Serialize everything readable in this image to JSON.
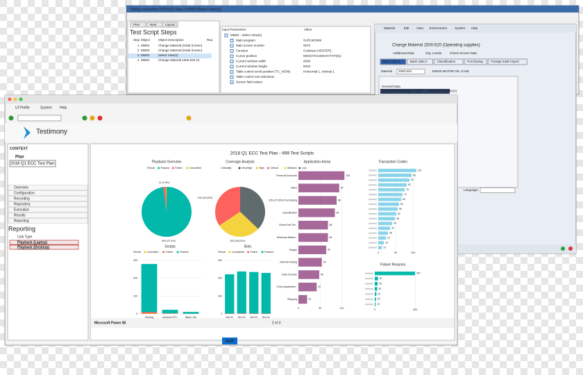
{
  "back_dialog": {
    "title": "Dialog transaction (320/312) Step 3 (MM02/Select View(s))",
    "buttons": [
      "Prev",
      "Next",
      "Layout..."
    ],
    "steps_title": "Test Script Steps",
    "columns": [
      "Step",
      "Object",
      "Object Description",
      "Rea"
    ],
    "steps": [
      [
        "1",
        "MM02",
        "Change Material (Initial Screen)"
      ],
      [
        "2",
        "MM02",
        "Change Material (Initial Screen)"
      ],
      [
        "3",
        "MM02",
        "Select View(s)"
      ],
      [
        "4",
        "MM02",
        "Change Material 1500-520 (O"
      ]
    ],
    "params_header": [
      "Input Parameters",
      "Value"
    ],
    "params": [
      {
        "label": "MM02 - Select View(s)"
      },
      {
        "label": "Main program",
        "value": "SAPLMGMM"
      },
      {
        "label": "Main screen number",
        "value": "0070"
      },
      {
        "label": "Function",
        "value": "Continue (<ENTER)"
      },
      {
        "label": "Cursor position",
        "value": "MSICHTAUSW-DYTXT(01)"
      },
      {
        "label": "Current window width",
        "value": "0046"
      },
      {
        "label": "Current window height",
        "value": "0018"
      },
      {
        "label": "Table control scroll position (TC_VIEW)",
        "value": "Horizontal 1, Vertical 1"
      },
      {
        "label": "Table control row selections"
      },
      {
        "label": "Screen field values"
      }
    ]
  },
  "sap_window": {
    "menu": [
      "Material",
      "Edit",
      "Goto",
      "Environment",
      "System",
      "Help"
    ],
    "title": "Change Material 1500-520 (Operating supplies)",
    "toolbar": [
      "Additional Data",
      "Org. Levels",
      "Check Screen Data"
    ],
    "tabs": [
      "Basic data 1",
      "Basic data 2",
      "Classification",
      "Purchasing",
      "Foreign trade import"
    ],
    "material_label": "Material",
    "material": "1500-520",
    "description": "10W30 MOTOR OIL CASE",
    "section": "General Data",
    "fields": [
      "Base Unit of Measure",
      "CSE",
      "Material Group",
      "00101"
    ],
    "language": "Language:"
  },
  "front_window": {
    "menu": [
      "UI Profile",
      "System",
      "Help"
    ],
    "brand": "Testimony",
    "context": "CONTEXT",
    "plan_label": "Plan",
    "plan": "2018 Q1 ECC Test Plan",
    "nav": [
      "Overview",
      "Configuration",
      "Recording",
      "Repository",
      "Execution",
      "Results",
      "Reporting"
    ],
    "reporting": "Reporting",
    "link_type": "Link Type",
    "links": [
      "Playback (Laptop)",
      "Playback (Desktop)"
    ],
    "sap": "SAP"
  },
  "dashboard": {
    "title": "2018 Q1 ECC Test Plan - 699 Test Scripts",
    "footer": "Microsoft Power BI",
    "pager": "2 of 3",
    "charts": [
      {
        "type": "pie",
        "title": "Playback Overview",
        "legend_title": "Result",
        "categories": [
          "Passed",
          "Failed",
          "Cancelled"
        ],
        "colors": [
          "#01b8aa",
          "#fd625e",
          "#f2c80f"
        ],
        "values": [
          654,
          11,
          3
        ],
        "value_labels": [
          "654 (97.9%)",
          "11 (1.6%)",
          null
        ]
      },
      {
        "type": "pie",
        "title": "Coverage Analysis",
        "legend_title": "Criticality",
        "categories": [
          "VeryHigh",
          "High",
          "Critical",
          "Medium",
          "Low"
        ],
        "colors": [
          "#374649",
          "#f2c80f",
          "#fd625e",
          "#f5d33f",
          "#5f6b6d"
        ],
        "values": [
          0,
          0,
          240,
          200,
          259
        ],
        "value_labels": [
          null,
          null,
          "240 (34.33%)",
          "200 (28.61%)",
          "259 (37.05%)"
        ]
      },
      {
        "type": "hbar",
        "title": "Application Areas",
        "color": "#a66999",
        "categories": [
          "Financial Accounts",
          "Sales",
          "Purchasing",
          "Classification",
          "Client/Cntrl Tex..",
          "Workload Balanc..",
          "Margin",
          "Internal Posting",
          "Data Formats",
          "Cross Application..",
          "Shipping"
        ],
        "values": [
          106,
          94,
          88,
          84,
          68,
          68,
          64,
          54,
          48,
          42,
          20
        ],
        "xlim": [
          0,
          120
        ],
        "xticks": [
          0,
          50,
          100
        ]
      },
      {
        "type": "hbar",
        "title": "Transaction Codes",
        "color": "#8ad4eb",
        "categories": [
          null,
          null,
          null,
          null,
          null,
          null,
          null,
          null,
          null,
          null,
          null,
          null,
          null,
          null,
          null,
          null,
          null
        ],
        "values": [
          110,
          96,
          90,
          82,
          76,
          70,
          66,
          60,
          56,
          52,
          48,
          40,
          34,
          28,
          22,
          16,
          10
        ],
        "xlim": [
          0,
          120
        ],
        "xticks": [
          0,
          50,
          100
        ]
      },
      {
        "type": "hbar",
        "title": "Failure Reasons",
        "color": "#01b8aa",
        "categories": [
          null,
          null,
          null,
          null,
          null,
          null,
          null
        ],
        "values": [
          497,
          40,
          35,
          30,
          20,
          15,
          10
        ],
        "xlim": [
          0,
          600
        ],
        "xticks": [
          0,
          500
        ]
      },
      {
        "type": "column",
        "title": "Scripts",
        "legend_title": "Result",
        "categories": [
          "Sharing",
          "Inbound RFC",
          "Batch Job"
        ],
        "series": [
          {
            "name": "Cancelled",
            "color": "#f2c80f",
            "values": [
              2,
              1,
              0
            ]
          },
          {
            "name": "Failed",
            "color": "#fd625e",
            "values": [
              8,
              2,
              1
            ]
          },
          {
            "name": "Passed",
            "color": "#01b8aa",
            "values": [
              270,
              20,
              10
            ]
          }
        ],
        "ylim": [
          0,
          300
        ],
        "yticks": [
          0,
          100,
          200,
          300
        ]
      },
      {
        "type": "column",
        "title": "Bots",
        "legend_title": "Result",
        "categories": [
          "Bot 01",
          "Bot 02",
          "Bot 03",
          "Bot 04"
        ],
        "series": [
          {
            "name": "Completed",
            "color": "#f2c80f",
            "values": [
              0,
              0,
              0,
              0
            ]
          },
          {
            "name": "Failed",
            "color": "#fd625e",
            "values": [
              2,
              3,
              2,
              2
            ]
          },
          {
            "name": "Passed",
            "color": "#01b8aa",
            "values": [
              220,
              235,
              233,
              228
            ]
          }
        ],
        "ylim": [
          0,
          300
        ],
        "yticks": [
          0,
          100,
          200,
          300
        ]
      }
    ]
  }
}
